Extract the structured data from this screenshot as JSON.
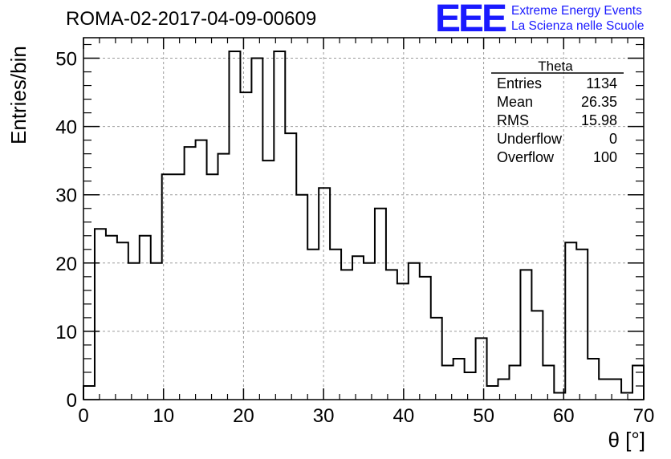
{
  "header": {
    "run_title": "ROMA-02-2017-04-09-00609",
    "logo_text": "EEE",
    "logo_line1": "Extreme Energy Events",
    "logo_line2": "La Scienza nelle Scuole"
  },
  "stats": {
    "title": "Theta",
    "rows": [
      {
        "label": "Entries",
        "value": "1134"
      },
      {
        "label": "Mean",
        "value": "26.35"
      },
      {
        "label": "RMS",
        "value": "15.98"
      },
      {
        "label": "Underflow",
        "value": "0"
      },
      {
        "label": "Overflow",
        "value": "100"
      }
    ]
  },
  "colors": {
    "accent": "#1a1aff",
    "line": "#000000",
    "grid": "#9a9a9a"
  },
  "chart_data": {
    "type": "bar",
    "style": "step-histogram",
    "xlabel": "θ [°]",
    "ylabel": "Entries/bin",
    "xlim": [
      0,
      70
    ],
    "ylim": [
      0,
      53
    ],
    "bin_width": 1.4,
    "x_ticks": [
      "0",
      "10",
      "20",
      "30",
      "40",
      "50",
      "60",
      "70"
    ],
    "y_ticks": [
      "0",
      "10",
      "20",
      "30",
      "40",
      "50"
    ],
    "grid": true,
    "values": [
      2,
      25,
      24,
      23,
      20,
      24,
      20,
      33,
      33,
      37,
      38,
      33,
      36,
      51,
      45,
      50,
      35,
      51,
      39,
      30,
      22,
      31,
      22,
      19,
      21,
      20,
      28,
      19,
      17,
      20,
      18,
      12,
      5,
      6,
      4,
      9,
      2,
      3,
      5,
      19,
      13,
      5,
      1,
      23,
      22,
      6,
      3,
      3,
      1,
      5
    ]
  }
}
